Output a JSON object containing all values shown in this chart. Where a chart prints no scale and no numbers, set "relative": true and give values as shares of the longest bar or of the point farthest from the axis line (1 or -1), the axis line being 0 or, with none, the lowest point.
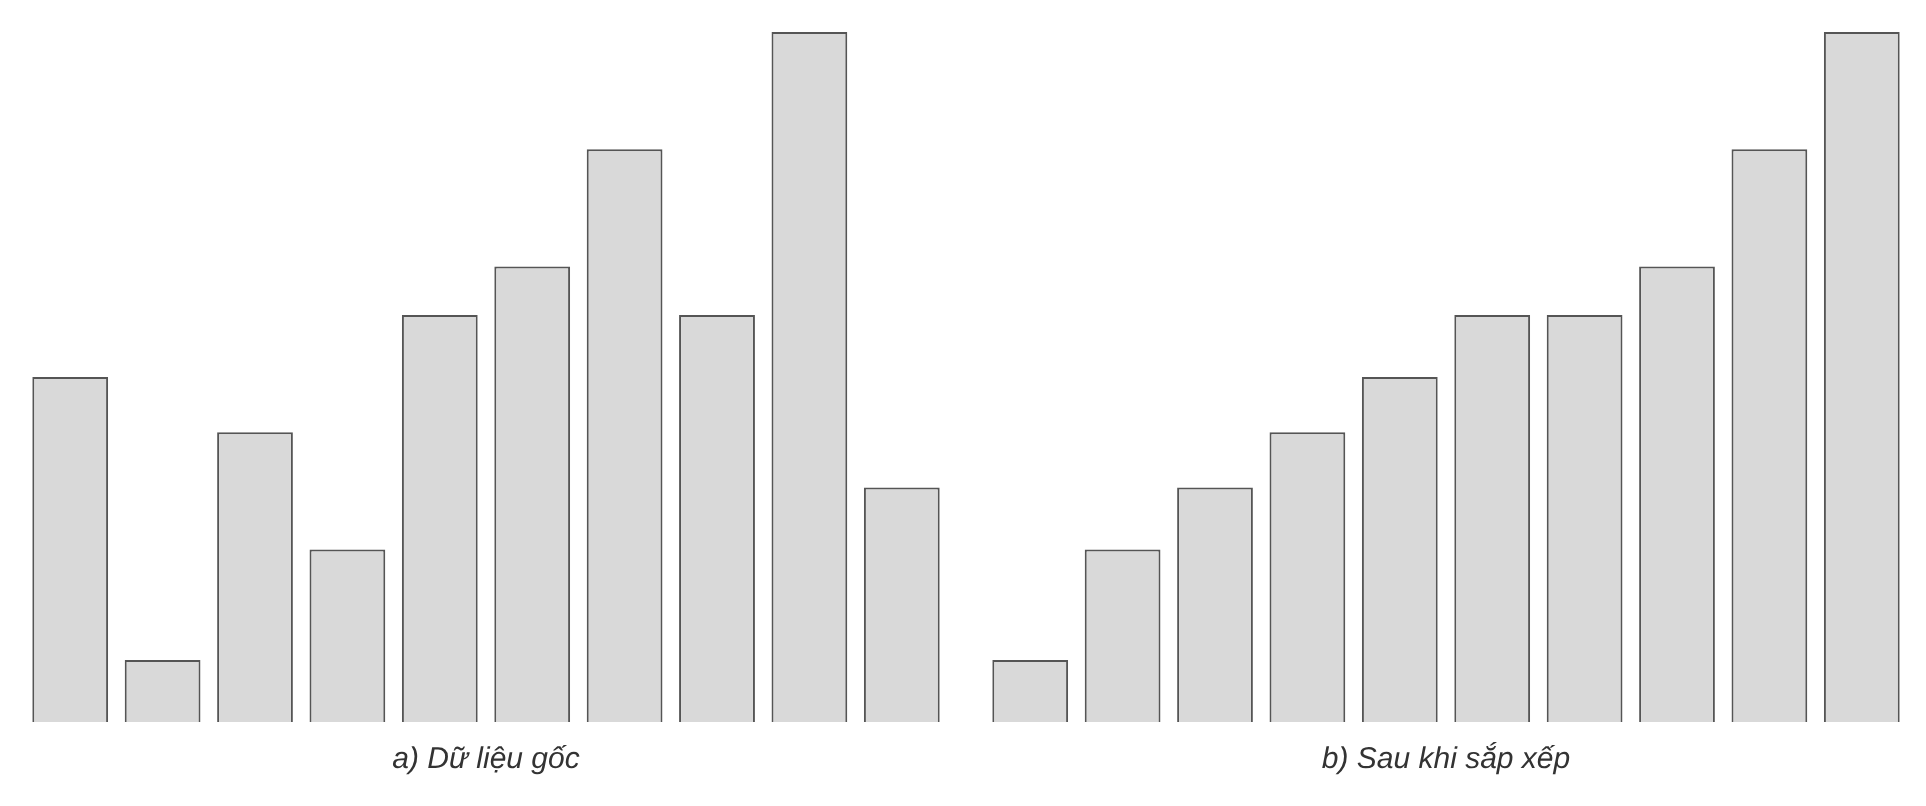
{
  "chart_data": [
    {
      "type": "bar",
      "xlabel": "a) Dữ liệu gốc",
      "relative": true,
      "categories": [
        null,
        null,
        null,
        null,
        null,
        null,
        null,
        null,
        null,
        null
      ],
      "values": [
        0.5,
        0.09,
        0.42,
        0.25,
        0.59,
        0.66,
        0.83,
        0.59,
        1,
        0.34
      ],
      "color": "#d9d9d9",
      "grid": false,
      "tick_labels": false
    },
    {
      "type": "bar",
      "xlabel": "b) Sau khi sắp xếp",
      "relative": true,
      "categories": [
        null,
        null,
        null,
        null,
        null,
        null,
        null,
        null,
        null,
        null
      ],
      "values": [
        0.09,
        0.25,
        0.34,
        0.42,
        0.5,
        0.59,
        0.59,
        0.66,
        0.83,
        1
      ],
      "color": "#d9d9d9",
      "grid": false,
      "tick_labels": false
    }
  ]
}
